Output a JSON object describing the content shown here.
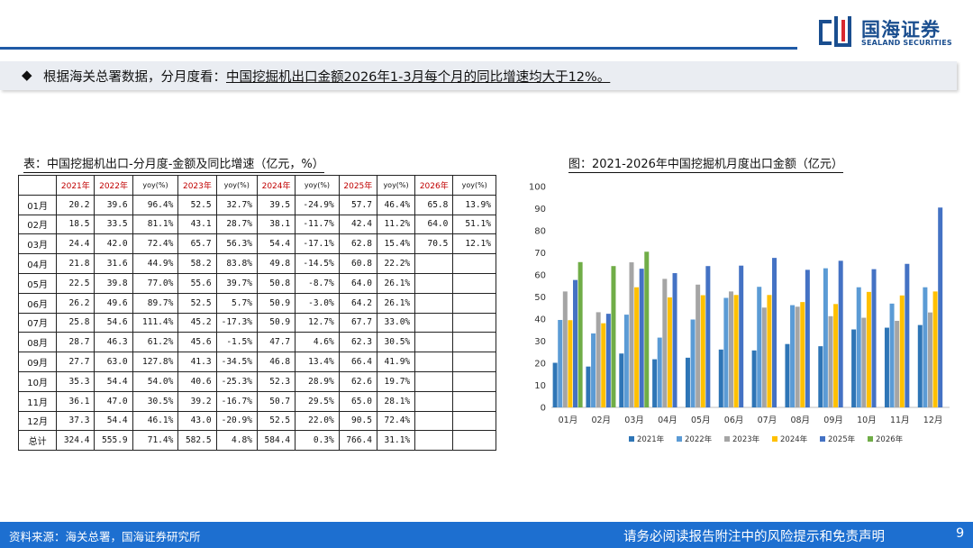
{
  "logo": {
    "name": "国海证券",
    "name_en": "SEALAND SECURITIES"
  },
  "headline": {
    "prefix": "根据海关总署数据，分月度看：",
    "highlight": "中国挖掘机出口金额2026年1-3月每个月的同比增速均大于12%。"
  },
  "table": {
    "title": "表：中国挖掘机出口-分月度-金额及同比增速（亿元，%）",
    "years": [
      "2021年",
      "2022年",
      "2023年",
      "2024年",
      "2025年",
      "2026年"
    ],
    "yoy_label": "yoy(%)",
    "rows": [
      [
        "01月",
        "20.2",
        "39.6",
        "96.4%",
        "52.5",
        "32.7%",
        "39.5",
        "-24.9%",
        "57.7",
        "46.4%",
        "65.8",
        "13.9%"
      ],
      [
        "02月",
        "18.5",
        "33.5",
        "81.1%",
        "43.1",
        "28.7%",
        "38.1",
        "-11.7%",
        "42.4",
        "11.2%",
        "64.0",
        "51.1%"
      ],
      [
        "03月",
        "24.4",
        "42.0",
        "72.4%",
        "65.7",
        "56.3%",
        "54.4",
        "-17.1%",
        "62.8",
        "15.4%",
        "70.5",
        "12.1%"
      ],
      [
        "04月",
        "21.8",
        "31.6",
        "44.9%",
        "58.2",
        "83.8%",
        "49.8",
        "-14.5%",
        "60.8",
        "22.2%",
        "",
        ""
      ],
      [
        "05月",
        "22.5",
        "39.8",
        "77.0%",
        "55.6",
        "39.7%",
        "50.8",
        "-8.7%",
        "64.0",
        "26.1%",
        "",
        ""
      ],
      [
        "06月",
        "26.2",
        "49.6",
        "89.7%",
        "52.5",
        "5.7%",
        "50.9",
        "-3.0%",
        "64.2",
        "26.1%",
        "",
        ""
      ],
      [
        "07月",
        "25.8",
        "54.6",
        "111.4%",
        "45.2",
        "-17.3%",
        "50.9",
        "12.7%",
        "67.7",
        "33.0%",
        "",
        ""
      ],
      [
        "08月",
        "28.7",
        "46.3",
        "61.2%",
        "45.6",
        "-1.5%",
        "47.7",
        "4.6%",
        "62.3",
        "30.5%",
        "",
        ""
      ],
      [
        "09月",
        "27.7",
        "63.0",
        "127.8%",
        "41.3",
        "-34.5%",
        "46.8",
        "13.4%",
        "66.4",
        "41.9%",
        "",
        ""
      ],
      [
        "10月",
        "35.3",
        "54.4",
        "54.0%",
        "40.6",
        "-25.3%",
        "52.3",
        "28.9%",
        "62.6",
        "19.7%",
        "",
        ""
      ],
      [
        "11月",
        "36.1",
        "47.0",
        "30.5%",
        "39.2",
        "-16.7%",
        "50.7",
        "29.5%",
        "65.0",
        "28.1%",
        "",
        ""
      ],
      [
        "12月",
        "37.3",
        "54.4",
        "46.1%",
        "43.0",
        "-20.9%",
        "52.5",
        "22.0%",
        "90.5",
        "72.4%",
        "",
        ""
      ],
      [
        "总计",
        "324.4",
        "555.9",
        "71.4%",
        "582.5",
        "4.8%",
        "584.4",
        "0.3%",
        "766.4",
        "31.1%",
        "",
        ""
      ]
    ]
  },
  "chart_data": {
    "type": "bar",
    "title": "图：2021-2026年中国挖掘机月度出口金额（亿元）",
    "categories": [
      "01月",
      "02月",
      "03月",
      "04月",
      "05月",
      "06月",
      "07月",
      "08月",
      "09月",
      "10月",
      "11月",
      "12月"
    ],
    "series": [
      {
        "name": "2021年",
        "color": "#2e75b6",
        "values": [
          20.2,
          18.5,
          24.4,
          21.8,
          22.5,
          26.2,
          25.8,
          28.7,
          27.7,
          35.3,
          36.1,
          37.3
        ]
      },
      {
        "name": "2022年",
        "color": "#5b9bd5",
        "values": [
          39.6,
          33.5,
          42.0,
          31.6,
          39.8,
          49.6,
          54.6,
          46.3,
          63.0,
          54.4,
          47.0,
          54.4
        ]
      },
      {
        "name": "2023年",
        "color": "#a5a5a5",
        "values": [
          52.5,
          43.1,
          65.7,
          58.2,
          55.6,
          52.5,
          45.2,
          45.6,
          41.3,
          40.6,
          39.2,
          43.0
        ]
      },
      {
        "name": "2024年",
        "color": "#ffc000",
        "values": [
          39.5,
          38.1,
          54.4,
          49.8,
          50.8,
          50.9,
          50.9,
          47.7,
          46.8,
          52.3,
          50.7,
          52.5
        ]
      },
      {
        "name": "2025年",
        "color": "#4472c4",
        "values": [
          57.7,
          42.4,
          62.8,
          60.8,
          64.0,
          64.2,
          67.7,
          62.3,
          66.4,
          62.6,
          65.0,
          90.5
        ]
      },
      {
        "name": "2026年",
        "color": "#70ad47",
        "values": [
          65.8,
          64.0,
          70.5,
          null,
          null,
          null,
          null,
          null,
          null,
          null,
          null,
          null
        ]
      }
    ],
    "yticks": [
      "0",
      "10",
      "20",
      "30",
      "40",
      "50",
      "60",
      "70",
      "80",
      "90",
      "100"
    ],
    "ylim": [
      0,
      100
    ],
    "grid": false,
    "legend": "bottom"
  },
  "footer": {
    "source": "资料来源：海关总署，国海证券研究所",
    "disclaimer": "请务必阅读报告附注中的风险提示和免责声明",
    "page": "9"
  }
}
